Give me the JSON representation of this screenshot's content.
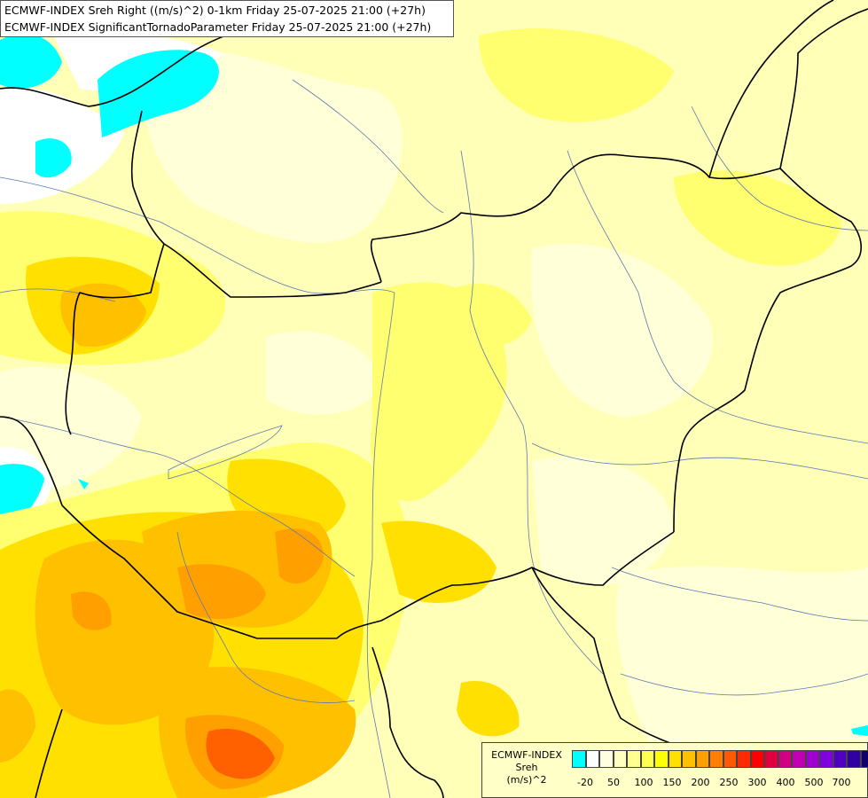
{
  "title": {
    "line1": "ECMWF-INDEX Sreh Right ((m/s)^2) 0-1km Friday 25-07-2025 21:00 (+27h)",
    "line2": "ECMWF-INDEX SignificantTornadoParameter Friday 25-07-2025 21:00 (+27h)"
  },
  "legend": {
    "model": "ECMWF-INDEX",
    "variable": "Sreh",
    "unit": "(m/s)^2",
    "colors": [
      "#00ffff",
      "#ffffff",
      "#ffffe0",
      "#ffffc0",
      "#ffff90",
      "#ffff50",
      "#ffff00",
      "#ffe000",
      "#ffc000",
      "#ffa000",
      "#ff8000",
      "#ff5a00",
      "#ff2a00",
      "#ff0000",
      "#e00040",
      "#d00080",
      "#c000b0",
      "#a000d0",
      "#8000e0",
      "#5000c0",
      "#3000a0",
      "#100070"
    ],
    "ticks": [
      "-20",
      "50",
      "100",
      "150",
      "200",
      "250",
      "300",
      "400",
      "500",
      "700"
    ]
  }
}
